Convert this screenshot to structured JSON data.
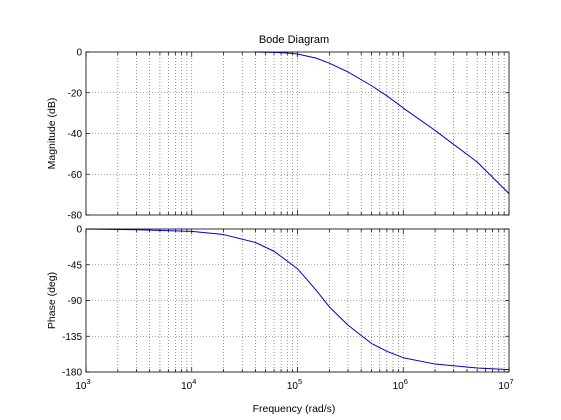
{
  "chart_data": {
    "type": "line",
    "title": "Bode Diagram",
    "xlabel": "Frequency  (rad/s)",
    "x_scale": "log",
    "xlim": [
      1000,
      10000000
    ],
    "x_ticks": [
      {
        "value": 1000,
        "base": "10",
        "exp": "3"
      },
      {
        "value": 10000,
        "base": "10",
        "exp": "4"
      },
      {
        "value": 100000,
        "base": "10",
        "exp": "5"
      },
      {
        "value": 1000000,
        "base": "10",
        "exp": "6"
      },
      {
        "value": 10000000,
        "base": "10",
        "exp": "7"
      }
    ],
    "grid": true,
    "line_color": "#0000cc",
    "panels": [
      {
        "ylabel": "Magnitude (dB)",
        "ylim": [
          -80,
          0
        ],
        "yticks": [
          0,
          -20,
          -40,
          -60,
          -80
        ],
        "yticks_labels": [
          "0",
          "-20",
          "-40",
          "-60",
          "-80"
        ],
        "series": [
          {
            "x": [
              40000,
              60000,
              80000,
              100000,
              150000,
              200000,
              300000,
              500000,
              700000,
              1000000,
              2000000,
              5000000,
              10000000
            ],
            "values": [
              0,
              -0.2,
              -0.5,
              -1,
              -3,
              -5.5,
              -9.8,
              -16.5,
              -21.5,
              -27.5,
              -38.5,
              -54,
              -69.5
            ]
          }
        ]
      },
      {
        "ylabel": "Phase (deg)",
        "ylim": [
          -180,
          0
        ],
        "yticks": [
          0,
          -45,
          -90,
          -135,
          -180
        ],
        "yticks_labels": [
          "0",
          "-45",
          "-90",
          "-135",
          "-180"
        ],
        "series": [
          {
            "x": [
              1000,
              3000,
              10000,
              20000,
              40000,
              60000,
              100000,
              150000,
              200000,
              300000,
              500000,
              700000,
              1000000,
              2000000,
              5000000,
              10000000
            ],
            "values": [
              0,
              -1,
              -3,
              -7,
              -17,
              -28,
              -50,
              -77,
              -98,
              -121,
              -144,
              -154,
              -162,
              -170,
              -175,
              -177
            ]
          }
        ]
      }
    ]
  }
}
